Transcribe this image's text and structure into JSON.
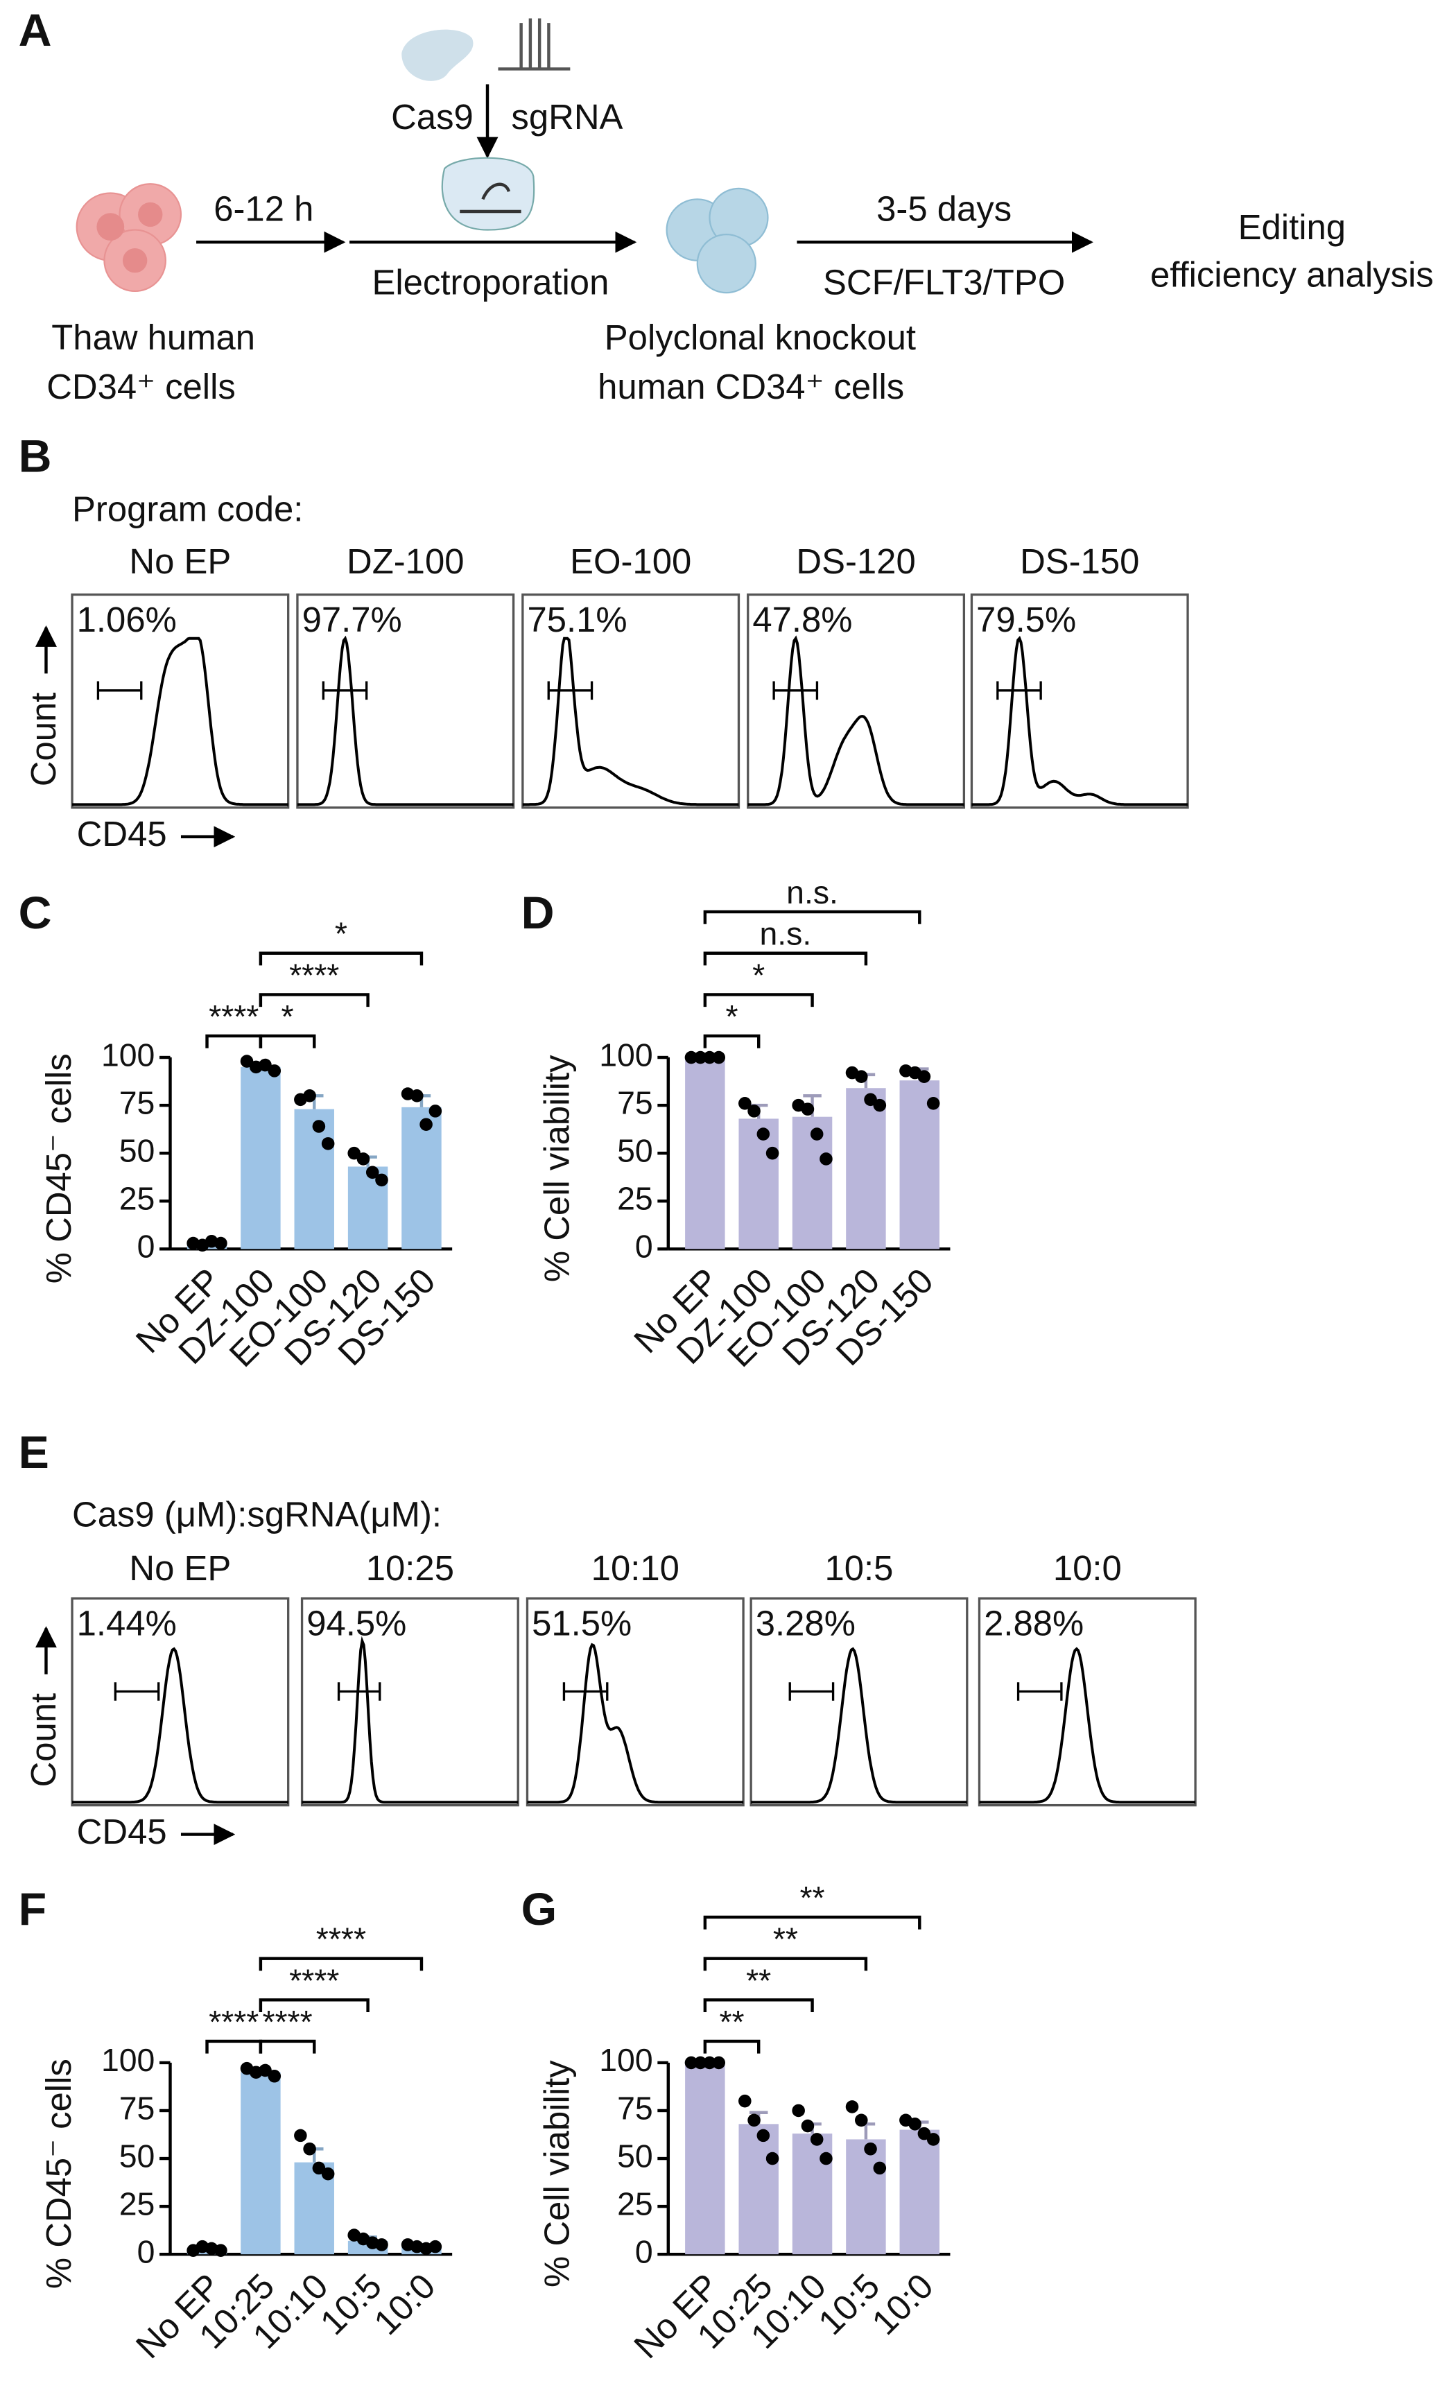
{
  "panel_labels": [
    "A",
    "B",
    "C",
    "D",
    "E",
    "F",
    "G"
  ],
  "diagram": {
    "reagents": [
      "Cas9",
      "sgRNA"
    ],
    "steps": [
      "6-12 h",
      "Electroporation",
      "3-5 days",
      "SCF/FLT3/TPO"
    ],
    "start": [
      "Thaw human",
      "CD34⁺ cells"
    ],
    "middle": [
      "Polyclonal knockout",
      "human CD34⁺ cells"
    ],
    "end": [
      "Editing",
      "efficiency analysis"
    ]
  },
  "flow_panels": [
    {
      "heading": "Program code:",
      "y_label": "Count",
      "x_label": "CD45",
      "plots": [
        {
          "title": "No EP",
          "percent": "1.06%"
        },
        {
          "title": "DZ-100",
          "percent": "97.7%"
        },
        {
          "title": "EO-100",
          "percent": "75.1%"
        },
        {
          "title": "DS-120",
          "percent": "47.8%"
        },
        {
          "title": "DS-150",
          "percent": "79.5%"
        }
      ]
    },
    {
      "heading": "Cas9 (μM):sgRNA(μM):",
      "y_label": "Count",
      "x_label": "CD45",
      "plots": [
        {
          "title": "No EP",
          "percent": "1.44%"
        },
        {
          "title": "10:25",
          "percent": "94.5%"
        },
        {
          "title": "10:10",
          "percent": "51.5%"
        },
        {
          "title": "10:5",
          "percent": "3.28%"
        },
        {
          "title": "10:0",
          "percent": "2.88%"
        }
      ]
    }
  ],
  "chart_data": [
    {
      "type": "bar",
      "ylabel": "% CD45⁻ cells",
      "color": "#9dc3e6",
      "categories": [
        "No EP",
        "DZ-100",
        "EO-100",
        "DS-120",
        "DS-150"
      ],
      "values": [
        3,
        95,
        73,
        43,
        74
      ],
      "errors": [
        1,
        2,
        7,
        5,
        6
      ],
      "points": [
        [
          3,
          2,
          4,
          3
        ],
        [
          98,
          95,
          96,
          93
        ],
        [
          78,
          80,
          64,
          55
        ],
        [
          50,
          47,
          40,
          36
        ],
        [
          81,
          80,
          65,
          72
        ]
      ],
      "ylim": [
        0,
        100
      ],
      "yticks": [
        0,
        25,
        50,
        75,
        100
      ],
      "significance": [
        {
          "from": 0,
          "to": 1,
          "label": "****"
        },
        {
          "from": 1,
          "to": 2,
          "label": "*"
        },
        {
          "from": 1,
          "to": 3,
          "label": "****"
        },
        {
          "from": 1,
          "to": 4,
          "label": "*"
        }
      ]
    },
    {
      "type": "bar",
      "ylabel": "% Cell viability",
      "color": "#b9b6da",
      "categories": [
        "No EP",
        "DZ-100",
        "EO-100",
        "DS-120",
        "DS-150"
      ],
      "values": [
        100,
        68,
        69,
        84,
        88
      ],
      "errors": [
        0,
        7,
        11,
        7,
        6
      ],
      "points": [
        [
          100,
          100,
          100,
          100
        ],
        [
          76,
          72,
          60,
          50
        ],
        [
          75,
          73,
          60,
          47
        ],
        [
          92,
          90,
          78,
          75
        ],
        [
          93,
          92,
          90,
          76
        ]
      ],
      "ylim": [
        0,
        100
      ],
      "yticks": [
        0,
        25,
        50,
        75,
        100
      ],
      "significance": [
        {
          "from": 0,
          "to": 1,
          "label": "*"
        },
        {
          "from": 0,
          "to": 2,
          "label": "*"
        },
        {
          "from": 0,
          "to": 3,
          "label": "n.s."
        },
        {
          "from": 0,
          "to": 4,
          "label": "n.s."
        }
      ]
    },
    {
      "type": "bar",
      "ylabel": "% CD45⁻ cells",
      "color": "#9dc3e6",
      "categories": [
        "No EP",
        "10:25",
        "10:10",
        "10:5",
        "10:0"
      ],
      "values": [
        3,
        95,
        48,
        7,
        4
      ],
      "errors": [
        1,
        2,
        7,
        2,
        1
      ],
      "points": [
        [
          2,
          4,
          3,
          2
        ],
        [
          97,
          95,
          96,
          93
        ],
        [
          62,
          55,
          45,
          42
        ],
        [
          10,
          8,
          6,
          5
        ],
        [
          5,
          4,
          3,
          4
        ]
      ],
      "ylim": [
        0,
        100
      ],
      "yticks": [
        0,
        25,
        50,
        75,
        100
      ],
      "significance": [
        {
          "from": 0,
          "to": 1,
          "label": "****"
        },
        {
          "from": 1,
          "to": 2,
          "label": "****"
        },
        {
          "from": 1,
          "to": 3,
          "label": "****"
        },
        {
          "from": 1,
          "to": 4,
          "label": "****"
        }
      ]
    },
    {
      "type": "bar",
      "ylabel": "% Cell viability",
      "color": "#b9b6da",
      "categories": [
        "No EP",
        "10:25",
        "10:10",
        "10:5",
        "10:0"
      ],
      "values": [
        100,
        68,
        63,
        60,
        65
      ],
      "errors": [
        0,
        6,
        5,
        8,
        4
      ],
      "points": [
        [
          100,
          100,
          100,
          100
        ],
        [
          80,
          70,
          62,
          50
        ],
        [
          75,
          67,
          60,
          50
        ],
        [
          77,
          70,
          55,
          45
        ],
        [
          70,
          68,
          63,
          60
        ]
      ],
      "ylim": [
        0,
        100
      ],
      "yticks": [
        0,
        25,
        50,
        75,
        100
      ],
      "significance": [
        {
          "from": 0,
          "to": 1,
          "label": "**"
        },
        {
          "from": 0,
          "to": 2,
          "label": "**"
        },
        {
          "from": 0,
          "to": 3,
          "label": "**"
        },
        {
          "from": 0,
          "to": 4,
          "label": "**"
        }
      ]
    }
  ]
}
